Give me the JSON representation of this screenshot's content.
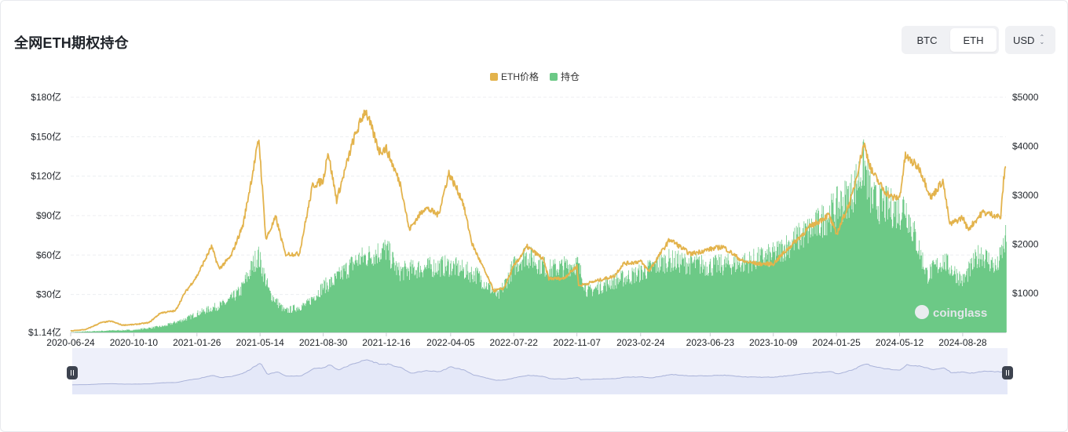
{
  "header": {
    "title": "全网ETH期权持仓",
    "asset_options": [
      "BTC",
      "ETH"
    ],
    "asset_selected": "ETH",
    "currency": "USD"
  },
  "colors": {
    "price": "#e3b34c",
    "oi": "#6cc986",
    "navigator_fill": "#e4e8f8",
    "navigator_line": "#aab3d9"
  },
  "chart_data": {
    "type": "bar+line",
    "legend": [
      {
        "name": "ETH价格",
        "color": "#e3b34c"
      },
      {
        "name": "持仓",
        "color": "#6cc986"
      }
    ],
    "left_axis": {
      "ticks": [
        "$1.14亿",
        "$30亿",
        "$60亿",
        "$90亿",
        "$120亿",
        "$150亿",
        "$180亿"
      ],
      "tick_values": [
        1.14,
        30,
        60,
        90,
        120,
        150,
        180
      ],
      "range": [
        1.14,
        180
      ]
    },
    "right_axis": {
      "ticks": [
        "$1000",
        "$2000",
        "$3000",
        "$4000",
        "$5000"
      ],
      "tick_values": [
        1000,
        2000,
        3000,
        4000,
        5000
      ],
      "range": [
        200,
        5000
      ]
    },
    "x_ticks": [
      "2020-06-24",
      "2020-10-10",
      "2021-01-26",
      "2021-05-14",
      "2021-08-30",
      "2021-12-16",
      "2022-04-05",
      "2022-07-22",
      "2022-11-07",
      "2023-02-24",
      "2023-06-23",
      "2023-10-09",
      "2024-01-25",
      "2024-05-12",
      "2024-08-28"
    ],
    "x_range": [
      "2020-06-24",
      "2024-11-10"
    ],
    "series": [
      {
        "name": "ETH价格",
        "kind": "line",
        "axis": "right",
        "points": [
          [
            "2020-06-24",
            230
          ],
          [
            "2020-07-20",
            260
          ],
          [
            "2020-08-15",
            400
          ],
          [
            "2020-09-01",
            430
          ],
          [
            "2020-09-20",
            350
          ],
          [
            "2020-10-10",
            360
          ],
          [
            "2020-11-05",
            400
          ],
          [
            "2020-11-25",
            600
          ],
          [
            "2020-12-20",
            640
          ],
          [
            "2021-01-05",
            1000
          ],
          [
            "2021-01-26",
            1350
          ],
          [
            "2021-02-20",
            1950
          ],
          [
            "2021-03-05",
            1500
          ],
          [
            "2021-03-25",
            1750
          ],
          [
            "2021-04-15",
            2400
          ],
          [
            "2021-05-12",
            4150
          ],
          [
            "2021-05-24",
            2100
          ],
          [
            "2021-06-10",
            2550
          ],
          [
            "2021-06-26",
            1800
          ],
          [
            "2021-07-20",
            1800
          ],
          [
            "2021-08-12",
            3200
          ],
          [
            "2021-08-30",
            3300
          ],
          [
            "2021-09-07",
            3900
          ],
          [
            "2021-09-22",
            2900
          ],
          [
            "2021-10-20",
            4100
          ],
          [
            "2021-11-10",
            4750
          ],
          [
            "2021-12-04",
            3900
          ],
          [
            "2021-12-16",
            3950
          ],
          [
            "2022-01-10",
            3200
          ],
          [
            "2022-01-24",
            2300
          ],
          [
            "2022-02-20",
            2750
          ],
          [
            "2022-03-15",
            2600
          ],
          [
            "2022-04-02",
            3450
          ],
          [
            "2022-04-25",
            2900
          ],
          [
            "2022-05-12",
            2000
          ],
          [
            "2022-06-18",
            1050
          ],
          [
            "2022-07-05",
            1100
          ],
          [
            "2022-07-22",
            1550
          ],
          [
            "2022-08-14",
            1950
          ],
          [
            "2022-09-10",
            1700
          ],
          [
            "2022-09-20",
            1300
          ],
          [
            "2022-10-15",
            1300
          ],
          [
            "2022-11-07",
            1550
          ],
          [
            "2022-11-10",
            1150
          ],
          [
            "2022-12-10",
            1250
          ],
          [
            "2023-01-10",
            1350
          ],
          [
            "2023-01-25",
            1600
          ],
          [
            "2023-02-24",
            1650
          ],
          [
            "2023-03-10",
            1450
          ],
          [
            "2023-04-15",
            2100
          ],
          [
            "2023-05-20",
            1800
          ],
          [
            "2023-06-23",
            1900
          ],
          [
            "2023-07-15",
            1950
          ],
          [
            "2023-08-18",
            1650
          ],
          [
            "2023-09-15",
            1600
          ],
          [
            "2023-10-09",
            1600
          ],
          [
            "2023-10-25",
            1800
          ],
          [
            "2023-11-15",
            2050
          ],
          [
            "2023-12-10",
            2350
          ],
          [
            "2024-01-12",
            2600
          ],
          [
            "2024-01-25",
            2200
          ],
          [
            "2024-02-20",
            2950
          ],
          [
            "2024-03-12",
            4050
          ],
          [
            "2024-03-25",
            3500
          ],
          [
            "2024-04-15",
            3100
          ],
          [
            "2024-04-30",
            2950
          ],
          [
            "2024-05-12",
            2950
          ],
          [
            "2024-05-22",
            3800
          ],
          [
            "2024-06-15",
            3550
          ],
          [
            "2024-07-05",
            2950
          ],
          [
            "2024-07-25",
            3300
          ],
          [
            "2024-08-06",
            2400
          ],
          [
            "2024-08-28",
            2550
          ],
          [
            "2024-09-06",
            2300
          ],
          [
            "2024-10-01",
            2650
          ],
          [
            "2024-10-20",
            2600
          ],
          [
            "2024-11-01",
            2550
          ],
          [
            "2024-11-06",
            3300
          ],
          [
            "2024-11-10",
            3650
          ]
        ]
      },
      {
        "name": "持仓",
        "kind": "bar",
        "axis": "left",
        "points": [
          [
            "2020-06-24",
            1.5
          ],
          [
            "2020-09-01",
            3
          ],
          [
            "2020-10-10",
            3.5
          ],
          [
            "2020-12-01",
            7
          ],
          [
            "2021-01-10",
            14
          ],
          [
            "2021-01-26",
            18
          ],
          [
            "2021-03-15",
            27
          ],
          [
            "2021-04-10",
            38
          ],
          [
            "2021-05-10",
            70
          ],
          [
            "2021-05-30",
            36
          ],
          [
            "2021-06-25",
            20
          ],
          [
            "2021-08-01",
            26
          ],
          [
            "2021-08-30",
            42
          ],
          [
            "2021-09-15",
            46
          ],
          [
            "2021-10-25",
            65
          ],
          [
            "2021-11-20",
            70
          ],
          [
            "2021-12-16",
            75
          ],
          [
            "2022-01-05",
            55
          ],
          [
            "2022-02-10",
            58
          ],
          [
            "2022-03-20",
            60
          ],
          [
            "2022-04-05",
            60
          ],
          [
            "2022-05-20",
            52
          ],
          [
            "2022-06-25",
            33
          ],
          [
            "2022-07-22",
            60
          ],
          [
            "2022-08-10",
            70
          ],
          [
            "2022-09-20",
            57
          ],
          [
            "2022-11-07",
            62
          ],
          [
            "2022-11-25",
            37
          ],
          [
            "2022-12-30",
            45
          ],
          [
            "2023-02-24",
            54
          ],
          [
            "2023-04-10",
            65
          ],
          [
            "2023-06-23",
            60
          ],
          [
            "2023-08-20",
            63
          ],
          [
            "2023-10-09",
            70
          ],
          [
            "2023-11-20",
            85
          ],
          [
            "2023-12-20",
            95
          ],
          [
            "2024-01-25",
            112
          ],
          [
            "2024-02-20",
            125
          ],
          [
            "2024-03-12",
            150
          ],
          [
            "2024-03-25",
            118
          ],
          [
            "2024-04-25",
            112
          ],
          [
            "2024-05-12",
            108
          ],
          [
            "2024-05-20",
            115
          ],
          [
            "2024-06-28",
            52
          ],
          [
            "2024-07-25",
            65
          ],
          [
            "2024-08-28",
            47
          ],
          [
            "2024-09-27",
            72
          ],
          [
            "2024-10-25",
            58
          ],
          [
            "2024-11-10",
            85
          ]
        ]
      }
    ],
    "watermark": "coinglass"
  }
}
